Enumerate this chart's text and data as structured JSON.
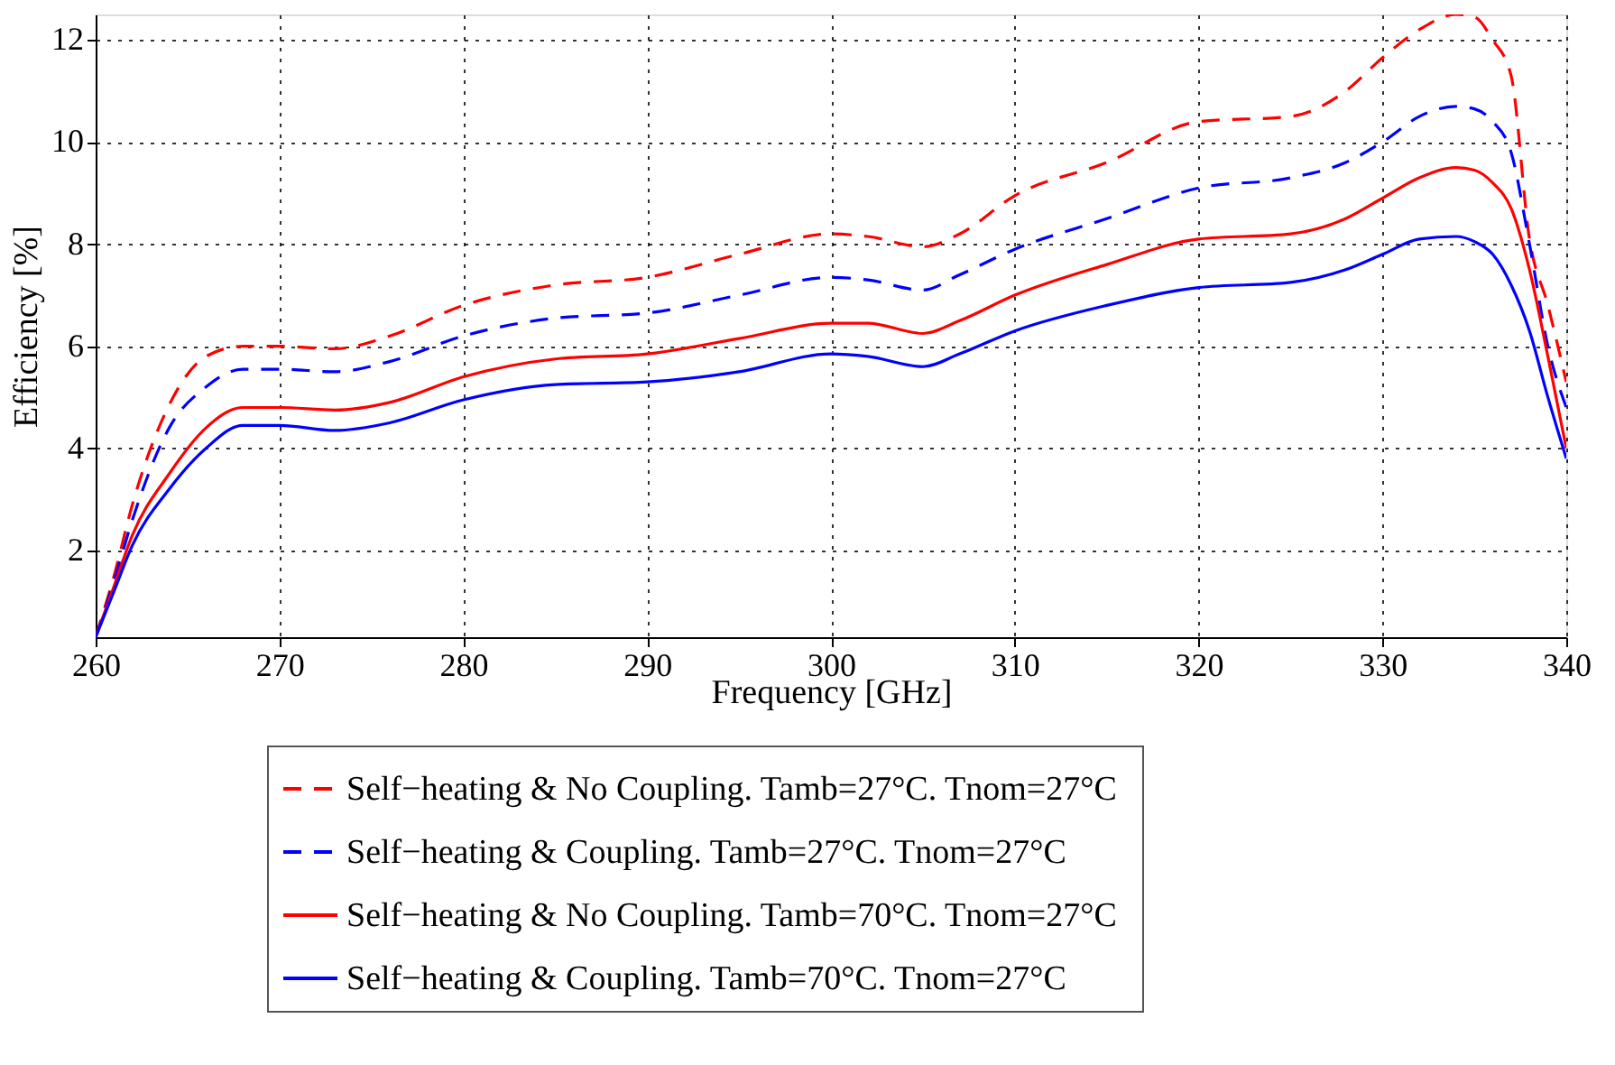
{
  "chart_data": {
    "type": "line",
    "xlabel": "Frequency [GHz]",
    "ylabel": "Efficiency [%]",
    "x": [
      260,
      261,
      262,
      264,
      266,
      268,
      270,
      273,
      276,
      280,
      285,
      290,
      295,
      300,
      302,
      305,
      307,
      310,
      315,
      320,
      325,
      328,
      330,
      332,
      334,
      335,
      336,
      337,
      338,
      339,
      340
    ],
    "series": [
      {
        "name": "Self−heating & No Coupling.  Tamb=27°C. Tnom=27°C",
        "color": "#ff0000",
        "line_style": "dashed",
        "values": [
          0.3,
          1.5,
          2.9,
          4.85,
          5.8,
          6.0,
          6.0,
          5.95,
          6.2,
          6.8,
          7.2,
          7.35,
          7.8,
          8.2,
          8.15,
          7.95,
          8.2,
          8.95,
          9.6,
          10.4,
          10.5,
          11.0,
          11.65,
          12.2,
          12.5,
          12.45,
          12.0,
          11.3,
          8.1,
          6.8,
          5.3
        ]
      },
      {
        "name": "Self−heating & Coupling. Tamb=27°C. Tnom=27°C",
        "color": "#0000ff",
        "line_style": "dashed",
        "values": [
          0.3,
          1.4,
          2.6,
          4.4,
          5.2,
          5.55,
          5.55,
          5.5,
          5.7,
          6.2,
          6.55,
          6.65,
          7.0,
          7.35,
          7.3,
          7.1,
          7.4,
          7.9,
          8.5,
          9.1,
          9.3,
          9.6,
          10.0,
          10.5,
          10.7,
          10.65,
          10.4,
          9.8,
          8.0,
          6.0,
          4.8
        ]
      },
      {
        "name": "Self−heating & No Coupling.  Tamb=70°C. Tnom=27°C",
        "color": "#ff0000",
        "line_style": "solid",
        "values": [
          0.3,
          1.3,
          2.3,
          3.5,
          4.4,
          4.8,
          4.8,
          4.75,
          4.9,
          5.4,
          5.75,
          5.85,
          6.15,
          6.45,
          6.45,
          6.25,
          6.5,
          7.0,
          7.6,
          8.1,
          8.2,
          8.5,
          8.9,
          9.3,
          9.5,
          9.45,
          9.2,
          8.7,
          7.5,
          5.8,
          4.0
        ]
      },
      {
        "name": "Self−heating & Coupling. Tamb=70°C. Tnom=27°C",
        "color": "#0000ff",
        "line_style": "solid",
        "values": [
          0.3,
          1.2,
          2.1,
          3.2,
          4.0,
          4.45,
          4.45,
          4.35,
          4.5,
          4.95,
          5.25,
          5.3,
          5.5,
          5.85,
          5.8,
          5.6,
          5.85,
          6.3,
          6.8,
          7.15,
          7.25,
          7.5,
          7.8,
          8.1,
          8.15,
          8.05,
          7.8,
          7.2,
          6.3,
          5.0,
          3.8
        ]
      }
    ],
    "xlim": [
      260,
      340
    ],
    "xticks": [
      260,
      270,
      280,
      290,
      300,
      310,
      320,
      330,
      340
    ],
    "ylim": [
      0.3,
      12.5
    ],
    "yticks": [
      2,
      4,
      6,
      8,
      10,
      12
    ],
    "grid": true,
    "legend": "bottom",
    "marker": "none"
  }
}
